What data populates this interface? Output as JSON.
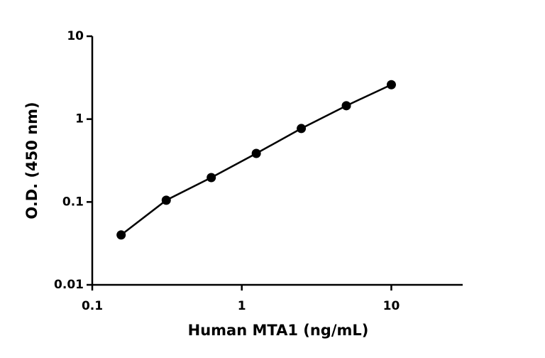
{
  "chart_data": {
    "type": "scatter",
    "x_label": "Human MTA1 (ng/mL)",
    "y_label": "O.D. (450 nm)",
    "x": [
      0.156,
      0.3125,
      0.625,
      1.25,
      2.5,
      5,
      10
    ],
    "values": [
      0.04,
      0.105,
      0.197,
      0.385,
      0.77,
      1.45,
      2.6
    ],
    "color": "#000000",
    "xscale": "log",
    "yscale": "log",
    "xlim": [
      0.1,
      30
    ],
    "ylim": [
      0.01,
      10
    ],
    "xticks": [
      0.1,
      1,
      10
    ],
    "yticks": [
      0.01,
      0.1,
      1,
      10
    ],
    "line": true
  }
}
